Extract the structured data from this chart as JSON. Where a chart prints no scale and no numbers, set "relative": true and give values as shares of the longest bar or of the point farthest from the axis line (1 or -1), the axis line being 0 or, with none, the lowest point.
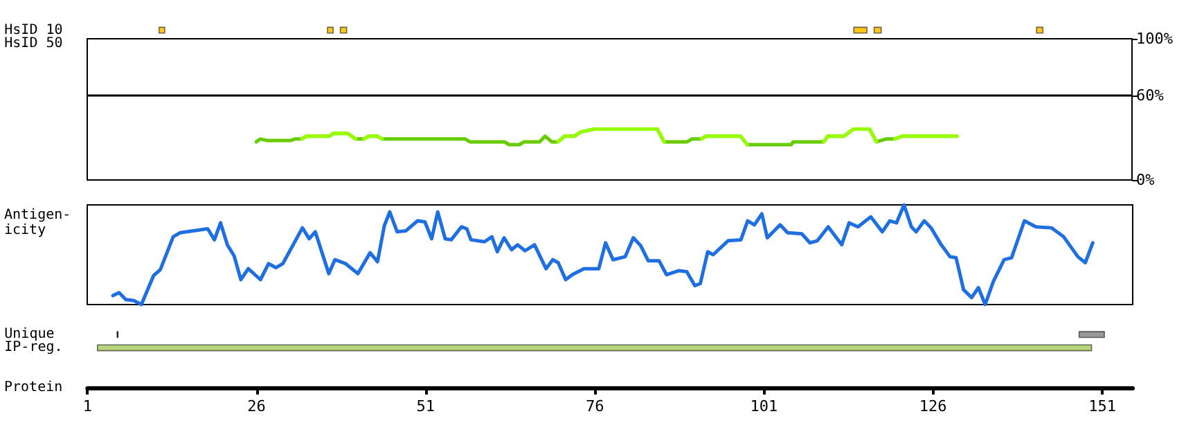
{
  "chart_data": [
    {
      "type": "bar",
      "orientation": "horizontal",
      "categories": [
        "HsID 10",
        "HsID 50",
        null,
        null,
        null,
        null,
        null,
        null,
        null,
        null,
        null,
        null,
        null,
        null,
        null,
        null,
        null,
        null,
        null,
        null,
        null,
        null,
        null,
        "Unique",
        "IP-reg."
      ],
      "xlabel": "Protein",
      "xlim": [
        1,
        155.5
      ],
      "xticks": [
        1,
        26,
        51,
        76,
        101,
        126,
        151
      ],
      "series": [
        {
          "color": "#ffc61e",
          "values": [
            1,
            null,
            null,
            null,
            null,
            null,
            null,
            null,
            null,
            null,
            null,
            null,
            null,
            null,
            null,
            null,
            null,
            null,
            null,
            null,
            null,
            null,
            null,
            null,
            null
          ],
          "base": [
            11.5,
            null,
            null,
            null,
            null,
            null,
            null,
            null,
            null,
            null,
            null,
            null,
            null,
            null,
            null,
            null,
            null,
            null,
            null,
            null,
            null,
            null,
            null,
            null,
            null
          ]
        },
        {
          "color": "#ffc61e",
          "values": [
            1,
            null,
            null,
            null,
            null,
            null,
            null,
            null,
            null,
            null,
            null,
            null,
            null,
            null,
            null,
            null,
            null,
            null,
            null,
            null,
            null,
            null,
            null,
            null,
            null
          ],
          "base": [
            36.4,
            null,
            null,
            null,
            null,
            null,
            null,
            null,
            null,
            null,
            null,
            null,
            null,
            null,
            null,
            null,
            null,
            null,
            null,
            null,
            null,
            null,
            null,
            null,
            null
          ]
        },
        {
          "color": "#ffc61e",
          "values": [
            1.1,
            null,
            null,
            null,
            null,
            null,
            null,
            null,
            null,
            null,
            null,
            null,
            null,
            null,
            null,
            null,
            null,
            null,
            null,
            null,
            null,
            null,
            null,
            null,
            null
          ],
          "base": [
            38.3,
            null,
            null,
            null,
            null,
            null,
            null,
            null,
            null,
            null,
            null,
            null,
            null,
            null,
            null,
            null,
            null,
            null,
            null,
            null,
            null,
            null,
            null,
            null,
            null
          ]
        },
        {
          "color": "#ffc61e",
          "values": [
            2.1,
            null,
            null,
            null,
            null,
            null,
            null,
            null,
            null,
            null,
            null,
            null,
            null,
            null,
            null,
            null,
            null,
            null,
            null,
            null,
            null,
            null,
            null,
            null,
            null
          ],
          "base": [
            114.2,
            null,
            null,
            null,
            null,
            null,
            null,
            null,
            null,
            null,
            null,
            null,
            null,
            null,
            null,
            null,
            null,
            null,
            null,
            null,
            null,
            null,
            null,
            null,
            null
          ]
        },
        {
          "color": "#ffc61e",
          "values": [
            1.2,
            null,
            null,
            null,
            null,
            null,
            null,
            null,
            null,
            null,
            null,
            null,
            null,
            null,
            null,
            null,
            null,
            null,
            null,
            null,
            null,
            null,
            null,
            null,
            null
          ],
          "base": [
            117.2,
            null,
            null,
            null,
            null,
            null,
            null,
            null,
            null,
            null,
            null,
            null,
            null,
            null,
            null,
            null,
            null,
            null,
            null,
            null,
            null,
            null,
            null,
            null,
            null
          ]
        },
        {
          "color": "#ffc61e",
          "values": [
            1.1,
            null,
            null,
            null,
            null,
            null,
            null,
            null,
            null,
            null,
            null,
            null,
            null,
            null,
            null,
            null,
            null,
            null,
            null,
            null,
            null,
            null,
            null,
            null,
            null
          ],
          "base": [
            141.2,
            null,
            null,
            null,
            null,
            null,
            null,
            null,
            null,
            null,
            null,
            null,
            null,
            null,
            null,
            null,
            null,
            null,
            null,
            null,
            null,
            null,
            null,
            null,
            null
          ]
        },
        {
          "color": "#000000",
          "values": [
            null,
            null,
            null,
            null,
            null,
            null,
            null,
            null,
            null,
            null,
            null,
            null,
            null,
            null,
            null,
            null,
            null,
            null,
            null,
            null,
            null,
            null,
            null,
            0.3,
            null
          ],
          "base": [
            null,
            null,
            null,
            null,
            null,
            null,
            null,
            null,
            null,
            null,
            null,
            null,
            null,
            null,
            null,
            null,
            null,
            null,
            null,
            null,
            null,
            null,
            null,
            5.3,
            null
          ]
        },
        {
          "color": "#999999",
          "values": [
            null,
            null,
            null,
            null,
            null,
            null,
            null,
            null,
            null,
            null,
            null,
            null,
            null,
            null,
            null,
            null,
            null,
            null,
            null,
            null,
            null,
            null,
            null,
            3.9,
            null
          ],
          "base": [
            null,
            null,
            null,
            null,
            null,
            null,
            null,
            null,
            null,
            null,
            null,
            null,
            null,
            null,
            null,
            null,
            null,
            null,
            null,
            null,
            null,
            null,
            null,
            147.5,
            null
          ]
        },
        {
          "color": "#b8d47c",
          "values": [
            null,
            null,
            null,
            null,
            null,
            null,
            null,
            null,
            null,
            null,
            null,
            null,
            null,
            null,
            null,
            null,
            null,
            null,
            null,
            null,
            null,
            null,
            null,
            null,
            147.1
          ],
          "base": [
            null,
            null,
            null,
            null,
            null,
            null,
            null,
            null,
            null,
            null,
            null,
            null,
            null,
            null,
            null,
            null,
            null,
            null,
            null,
            null,
            null,
            null,
            null,
            null,
            2.4
          ]
        }
      ]
    },
    {
      "type": "line",
      "xlim": [
        1,
        155.5
      ],
      "ylim": [
        0,
        100
      ],
      "yticks": [
        {
          "value": 0,
          "label": "0%"
        },
        {
          "value": 60,
          "label": "60%"
        },
        {
          "value": 100,
          "label": "100%"
        }
      ],
      "tick_labels": "y",
      "ref_lines": [
        {
          "axis": "y",
          "value": 60,
          "color": "#000000"
        }
      ],
      "series": [
        {
          "color": "#66cc00",
          "x": [
            26,
            26.6,
            27.6,
            31.1,
            31.7,
            32.7,
            33.4,
            36.8,
            37.4,
            39.5,
            40.7,
            41.9,
            42.6,
            43.9,
            44.6,
            56.9,
            57.6,
            62.7,
            63.4,
            64.9,
            65.6,
            67.9,
            68.7,
            69.7,
            70.6,
            71.6,
            73,
            74,
            76,
            85.3,
            86.3,
            89.7,
            90.4,
            91.8,
            92.5,
            97.6,
            98.6,
            105.1,
            105.4,
            109.9,
            110.5,
            112.9,
            114.3,
            116.7,
            117.7,
            119.1,
            120.4,
            121.5,
            129.6
          ],
          "values": [
            27,
            29,
            28,
            28,
            29,
            29,
            31,
            31,
            33,
            33,
            29,
            29,
            31,
            31,
            29,
            29,
            27,
            27,
            25,
            25,
            27,
            27,
            31,
            27,
            27,
            31,
            31,
            34,
            36,
            36,
            27,
            27,
            29,
            29,
            31,
            31,
            25,
            25,
            27,
            27,
            31,
            31,
            36,
            36,
            27,
            29,
            29,
            31,
            31
          ]
        },
        {
          "color": "#99ff00",
          "x": [
            32.7,
            33.4,
            36.8,
            37.4,
            39.5,
            40.7
          ],
          "values": [
            29,
            31,
            31,
            33,
            33,
            29
          ]
        },
        {
          "color": "#99ff00",
          "x": [
            41.9,
            42.6,
            43.9,
            44.6
          ],
          "values": [
            29,
            31,
            31,
            29
          ]
        },
        {
          "color": "#99ff00",
          "x": [
            70.6,
            71.6,
            73,
            74,
            76,
            85.3,
            86.3
          ],
          "values": [
            27,
            31,
            31,
            34,
            36,
            36,
            27
          ]
        },
        {
          "color": "#99ff00",
          "x": [
            91.8,
            92.5,
            97.6,
            98.6
          ],
          "values": [
            29,
            31,
            31,
            25
          ]
        },
        {
          "color": "#99ff00",
          "x": [
            109.9,
            110.5,
            112.9,
            114.3,
            116.7,
            117.7
          ],
          "values": [
            27,
            31,
            31,
            36,
            36,
            27
          ]
        },
        {
          "color": "#99ff00",
          "x": [
            120.4,
            121.5,
            129.6
          ],
          "values": [
            29,
            31,
            31
          ]
        }
      ]
    },
    {
      "type": "line",
      "relative": true,
      "ylabel": "Antigen-\nicity",
      "xlim": [
        1,
        155.5
      ],
      "tick_labels": false,
      "series": [
        {
          "color": "#1f6fe0",
          "x": [
            4.8,
            5.7,
            6.7,
            7.9,
            9.0,
            10.8,
            11.8,
            13.7,
            14.7,
            18.8,
            19.8,
            20.7,
            21.7,
            22.7,
            23.7,
            24.8,
            26.6,
            27.8,
            28.9,
            29.9,
            32.8,
            33.8,
            34.7,
            36.7,
            37.6,
            39.2,
            41.0,
            42.8,
            43.9,
            44.9,
            45.7,
            46.8,
            48.1,
            49.8,
            50.9,
            51.9,
            52.8,
            53.9,
            54.8,
            56.3,
            57.1,
            57.7,
            59.7,
            60.8,
            61.6,
            62.6,
            63.7,
            64.6,
            65.7,
            67.1,
            68.8,
            69.8,
            70.6,
            71.7,
            72.7,
            74.4,
            76.6,
            77.6,
            78.7,
            80.5,
            81.7,
            82.8,
            83.9,
            85.5,
            86.6,
            88.4,
            89.6,
            90.8,
            91.6,
            92.7,
            93.5,
            95.7,
            97.6,
            98.6,
            99.6,
            100.7,
            101.5,
            103.4,
            104.5,
            106.6,
            107.8,
            108.9,
            110.5,
            112.5,
            113.6,
            114.9,
            116.8,
            118.5,
            119.6,
            120.6,
            121.7,
            122.8,
            123.5,
            124.7,
            125.7,
            127.2,
            128.5,
            129.4,
            130.5,
            131.7,
            132.7,
            133.7,
            134.9,
            136.5,
            137.6,
            139.5,
            141.2,
            143.5,
            145.3,
            147.4,
            148.5,
            149.6
          ],
          "values": [
            0.09,
            0.12,
            0.05,
            0.04,
            0,
            0.29,
            0.35,
            0.68,
            0.72,
            0.76,
            0.65,
            0.82,
            0.6,
            0.49,
            0.25,
            0.36,
            0.25,
            0.41,
            0.37,
            0.41,
            0.77,
            0.66,
            0.73,
            0.31,
            0.45,
            0.41,
            0.31,
            0.52,
            0.43,
            0.79,
            0.93,
            0.73,
            0.74,
            0.84,
            0.83,
            0.66,
            0.93,
            0.66,
            0.65,
            0.78,
            0.76,
            0.65,
            0.63,
            0.68,
            0.53,
            0.67,
            0.55,
            0.6,
            0.54,
            0.6,
            0.36,
            0.45,
            0.42,
            0.25,
            0.3,
            0.36,
            0.36,
            0.62,
            0.45,
            0.48,
            0.67,
            0.59,
            0.44,
            0.44,
            0.3,
            0.34,
            0.33,
            0.19,
            0.21,
            0.53,
            0.5,
            0.64,
            0.65,
            0.84,
            0.8,
            0.91,
            0.67,
            0.8,
            0.72,
            0.71,
            0.62,
            0.64,
            0.78,
            0.6,
            0.82,
            0.78,
            0.88,
            0.73,
            0.84,
            0.82,
            1,
            0.78,
            0.73,
            0.84,
            0.77,
            0.6,
            0.48,
            0.47,
            0.15,
            0.07,
            0.17,
            0,
            0.23,
            0.45,
            0.47,
            0.84,
            0.78,
            0.77,
            0.68,
            0.48,
            0.42,
            0.62
          ]
        }
      ]
    }
  ]
}
